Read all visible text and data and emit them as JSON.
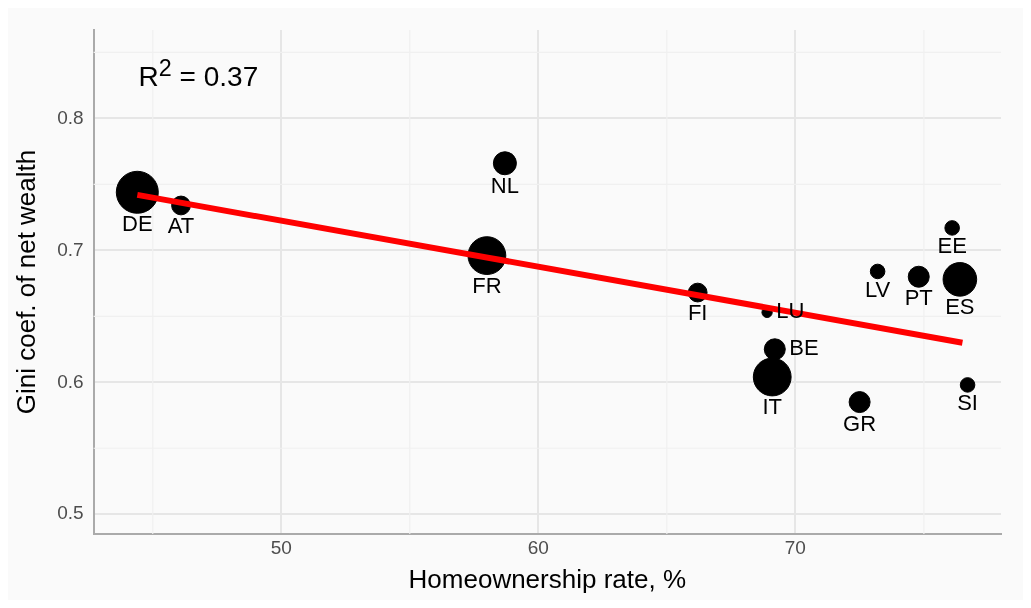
{
  "chart_data": {
    "type": "bubble",
    "xlabel": "Homeownership rate, %",
    "ylabel": "Gini coef. of net wealth",
    "xlim": [
      42.7,
      78
    ],
    "ylim": [
      0.485,
      0.867
    ],
    "xticks": [
      50,
      60,
      70
    ],
    "yticks": [
      0.5,
      0.6,
      0.7,
      0.8
    ],
    "grid": true,
    "legend": false,
    "series": [
      {
        "marker": "circle",
        "color": "#000000",
        "x": [
          44.4,
          46.1,
          58.7,
          58.0,
          66.2,
          68.9,
          69.2,
          69.1,
          72.5,
          76.7,
          73.2,
          74.8,
          76.4,
          76.1
        ],
        "values": [
          0.744,
          0.734,
          0.766,
          0.696,
          0.668,
          0.653,
          0.625,
          0.604,
          0.585,
          0.598,
          0.684,
          0.68,
          0.678,
          0.717
        ],
        "sizes": [
          1,
          0.2,
          0.3,
          0.81,
          0.2,
          0.06,
          0.25,
          0.81,
          0.25,
          0.12,
          0.12,
          0.25,
          0.64,
          0.12
        ]
      },
      {
        "type": "line",
        "color": "#ff0000",
        "x": [
          44.4,
          76.5
        ],
        "values": [
          0.742,
          0.63
        ]
      }
    ],
    "annotations": [
      "R$^{2}$ = 0.37",
      {
        "text": "DE",
        "x": 44.4,
        "y": 0.744
      },
      {
        "text": "AT",
        "x": 46.1,
        "y": 0.734
      },
      {
        "text": "NL",
        "x": 58.7,
        "y": 0.766
      },
      {
        "text": "FR",
        "x": 58.0,
        "y": 0.696
      },
      {
        "text": "FI",
        "x": 66.2,
        "y": 0.668
      },
      {
        "text": "LU",
        "x": 68.9,
        "y": 0.653
      },
      {
        "text": "BE",
        "x": 69.2,
        "y": 0.625
      },
      {
        "text": "IT",
        "x": 69.1,
        "y": 0.604
      },
      {
        "text": "GR",
        "x": 72.5,
        "y": 0.585
      },
      {
        "text": "SI",
        "x": 76.7,
        "y": 0.598
      },
      {
        "text": "LV",
        "x": 73.2,
        "y": 0.684
      },
      {
        "text": "PT",
        "x": 74.8,
        "y": 0.68
      },
      {
        "text": "ES",
        "x": 76.4,
        "y": 0.678
      },
      {
        "text": "EE",
        "x": 76.1,
        "y": 0.717
      }
    ]
  }
}
